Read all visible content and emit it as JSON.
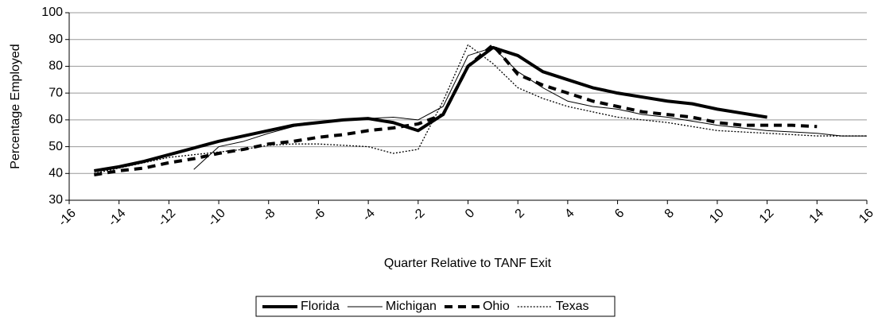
{
  "chart_data": {
    "type": "line",
    "xlabel": "Quarter Relative to TANF Exit",
    "ylabel": "Percentage Employed",
    "x": [
      -15,
      -14,
      -13,
      -12,
      -11,
      -10,
      -9,
      -8,
      -7,
      -6,
      -5,
      -4,
      -3,
      -2,
      -1,
      0,
      1,
      2,
      3,
      4,
      5,
      6,
      7,
      8,
      9,
      10,
      11,
      12,
      13,
      14,
      15,
      16
    ],
    "series": [
      {
        "name": "Florida",
        "color": "#000000",
        "style": "thick",
        "values": [
          41,
          42.5,
          44.5,
          47,
          49.5,
          52,
          54,
          56,
          58,
          59,
          60,
          60.5,
          59,
          56,
          62,
          80,
          87,
          84,
          78,
          75,
          72,
          70,
          68.5,
          67,
          66,
          64,
          62.5,
          61,
          null,
          null,
          null,
          null
        ]
      },
      {
        "name": "Michigan",
        "color": "#000000",
        "style": "thin",
        "values": [
          null,
          null,
          null,
          null,
          41.5,
          50,
          52,
          55,
          57.5,
          59,
          60,
          60.5,
          61,
          60,
          65,
          84,
          87,
          78,
          72,
          67,
          65,
          64,
          62,
          61,
          59.5,
          58,
          57,
          56,
          55.5,
          55,
          54,
          54
        ]
      },
      {
        "name": "Ohio",
        "color": "#000000",
        "style": "dashed",
        "values": [
          39.5,
          41,
          42,
          44,
          45.5,
          47.5,
          49,
          51,
          52,
          53.5,
          54.5,
          56,
          57,
          58.5,
          62,
          80,
          88,
          77,
          73,
          70,
          67,
          65,
          63,
          62,
          61,
          59,
          58,
          58,
          58,
          57.5,
          null,
          null
        ]
      },
      {
        "name": "Texas",
        "color": "#000000",
        "style": "dotted",
        "values": [
          40,
          42,
          44,
          46,
          47,
          48,
          49,
          50.5,
          51,
          51,
          50.5,
          50,
          47.5,
          49,
          67,
          88,
          81,
          72,
          68,
          65,
          63,
          61,
          60,
          59,
          57.5,
          56,
          55.5,
          55,
          54.5,
          54,
          54,
          54
        ]
      }
    ],
    "xlim": [
      -16,
      16
    ],
    "xticks": [
      -16,
      -14,
      -12,
      -10,
      -8,
      -6,
      -4,
      -2,
      0,
      2,
      4,
      6,
      8,
      10,
      12,
      14,
      16
    ],
    "ylim": [
      30,
      100
    ],
    "yticks": [
      30,
      40,
      50,
      60,
      70,
      80,
      90,
      100
    ],
    "grid": true,
    "legend": "bottom"
  }
}
